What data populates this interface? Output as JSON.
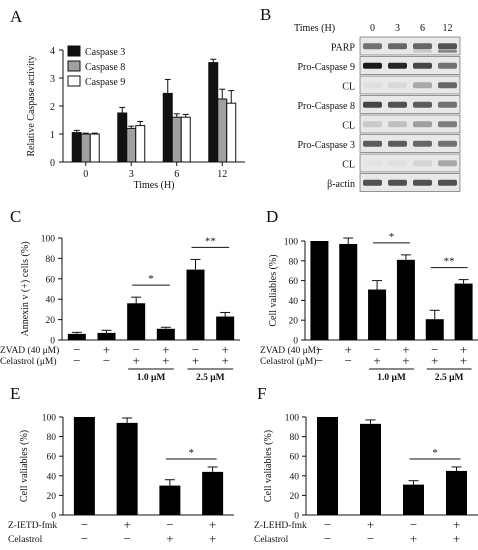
{
  "panel_labels": {
    "A": "A",
    "B": "B",
    "C": "C",
    "D": "D",
    "E": "E",
    "F": "F"
  },
  "chart_data": [
    {
      "id": "A",
      "type": "bar",
      "ylabel": "Relative Caspase  activity",
      "xlabel": "Times (H)",
      "ylim": [
        0,
        4
      ],
      "yticks": [
        0,
        1,
        2,
        3,
        4
      ],
      "categories": [
        "0",
        "3",
        "6",
        "12"
      ],
      "legend_position": "top-left",
      "series": [
        {
          "name": "Caspase 3",
          "color": "#111111",
          "values": [
            1.05,
            1.75,
            2.45,
            3.55
          ],
          "errors": [
            0.08,
            0.2,
            0.5,
            0.12
          ]
        },
        {
          "name": "Caspase 8",
          "color": "#a0a0a0",
          "values": [
            1.0,
            1.2,
            1.6,
            2.25
          ],
          "errors": [
            0.03,
            0.08,
            0.12,
            0.35
          ]
        },
        {
          "name": "Caspase 9",
          "color": "#ffffff",
          "values": [
            1.0,
            1.3,
            1.6,
            2.1
          ],
          "errors": [
            0.03,
            0.15,
            0.1,
            0.45
          ]
        }
      ]
    },
    {
      "id": "C",
      "type": "bar",
      "ylabel": "Annexin v (+) cells (%)",
      "ylim": [
        0,
        100
      ],
      "yticks": [
        0,
        20,
        40,
        60,
        80,
        100
      ],
      "values": [
        6,
        7,
        36,
        11,
        69,
        23
      ],
      "errors": [
        1.5,
        2.5,
        6,
        1.5,
        10,
        4
      ],
      "treatment_rows": [
        {
          "label": "ZVAD (40 μM)",
          "marks": [
            "−",
            "+",
            "−",
            "+",
            "−",
            "+"
          ]
        },
        {
          "label": "Celastrol (μM)",
          "marks": [
            "−",
            "−",
            "+",
            "+",
            "+",
            "+"
          ]
        }
      ],
      "dose_groups": [
        {
          "label": "1.0 μM",
          "span": [
            2,
            3
          ]
        },
        {
          "label": "2.5 μM",
          "span": [
            4,
            5
          ]
        }
      ],
      "significance": [
        {
          "label": "*",
          "bars": [
            2,
            3
          ]
        },
        {
          "label": "**",
          "bars": [
            4,
            5
          ]
        }
      ]
    },
    {
      "id": "D",
      "type": "bar",
      "ylabel": "Cell valiables (%)",
      "ylim": [
        0,
        100
      ],
      "yticks": [
        0,
        20,
        40,
        60,
        80,
        100
      ],
      "values": [
        100,
        97,
        51,
        81,
        21,
        57
      ],
      "errors": [
        0,
        6,
        9,
        5,
        9,
        4
      ],
      "treatment_rows": [
        {
          "label": "ZVAD (40 μM)",
          "marks": [
            "−",
            "+",
            "−",
            "+",
            "−",
            "+"
          ]
        },
        {
          "label": "Celastrol (μM)",
          "marks": [
            "−",
            "−",
            "+",
            "+",
            "+",
            "+"
          ]
        }
      ],
      "dose_groups": [
        {
          "label": "1.0 μM",
          "span": [
            2,
            3
          ]
        },
        {
          "label": "2.5 μM",
          "span": [
            4,
            5
          ]
        }
      ],
      "significance": [
        {
          "label": "*",
          "bars": [
            2,
            3
          ]
        },
        {
          "label": "**",
          "bars": [
            4,
            5
          ]
        }
      ]
    },
    {
      "id": "E",
      "type": "bar",
      "ylabel": "Cell valiables (%)",
      "ylim": [
        0,
        100
      ],
      "yticks": [
        0,
        20,
        40,
        60,
        80,
        100
      ],
      "values": [
        100,
        94,
        30,
        44
      ],
      "errors": [
        0,
        5,
        6,
        5
      ],
      "treatment_rows": [
        {
          "label": "Z-IETD-fmk",
          "marks": [
            "−",
            "+",
            "−",
            "+"
          ]
        },
        {
          "label": "Celastrol",
          "marks": [
            "−",
            "−",
            "+",
            "+"
          ]
        }
      ],
      "significance": [
        {
          "label": "*",
          "bars": [
            2,
            3
          ]
        }
      ]
    },
    {
      "id": "F",
      "type": "bar",
      "ylabel": "Cell valiables (%)",
      "ylim": [
        0,
        100
      ],
      "yticks": [
        0,
        20,
        40,
        60,
        80,
        100
      ],
      "values": [
        100,
        93,
        31,
        45
      ],
      "errors": [
        0,
        4,
        4,
        4
      ],
      "treatment_rows": [
        {
          "label": "Z-LEHD-fmk",
          "marks": [
            "−",
            "+",
            "−",
            "+"
          ]
        },
        {
          "label": "Celastrol",
          "marks": [
            "−",
            "−",
            "+",
            "+"
          ]
        }
      ],
      "significance": [
        {
          "label": "*",
          "bars": [
            2,
            3
          ]
        }
      ]
    }
  ],
  "western_blot": {
    "header_label": "Times (H)",
    "lanes": [
      "0",
      "3",
      "6",
      "12"
    ],
    "rows": [
      {
        "label": "PARP",
        "intensity": [
          0.55,
          0.6,
          0.6,
          0.7
        ],
        "secondary": [
          0,
          0,
          0.15,
          0.45
        ]
      },
      {
        "label": "Pro-Caspase 9",
        "intensity": [
          0.95,
          0.9,
          0.75,
          0.55
        ]
      },
      {
        "label": "CL",
        "intensity": [
          0.05,
          0.08,
          0.3,
          0.6
        ]
      },
      {
        "label": "Pro-Caspase 8",
        "intensity": [
          0.75,
          0.7,
          0.65,
          0.55
        ]
      },
      {
        "label": "CL",
        "intensity": [
          0.15,
          0.2,
          0.35,
          0.5
        ]
      },
      {
        "label": "Pro-Caspase 3",
        "intensity": [
          0.65,
          0.65,
          0.6,
          0.55
        ]
      },
      {
        "label": "CL",
        "intensity": [
          0.03,
          0.05,
          0.1,
          0.3
        ]
      },
      {
        "label": "β-actin",
        "intensity": [
          0.7,
          0.7,
          0.7,
          0.7
        ]
      }
    ]
  }
}
